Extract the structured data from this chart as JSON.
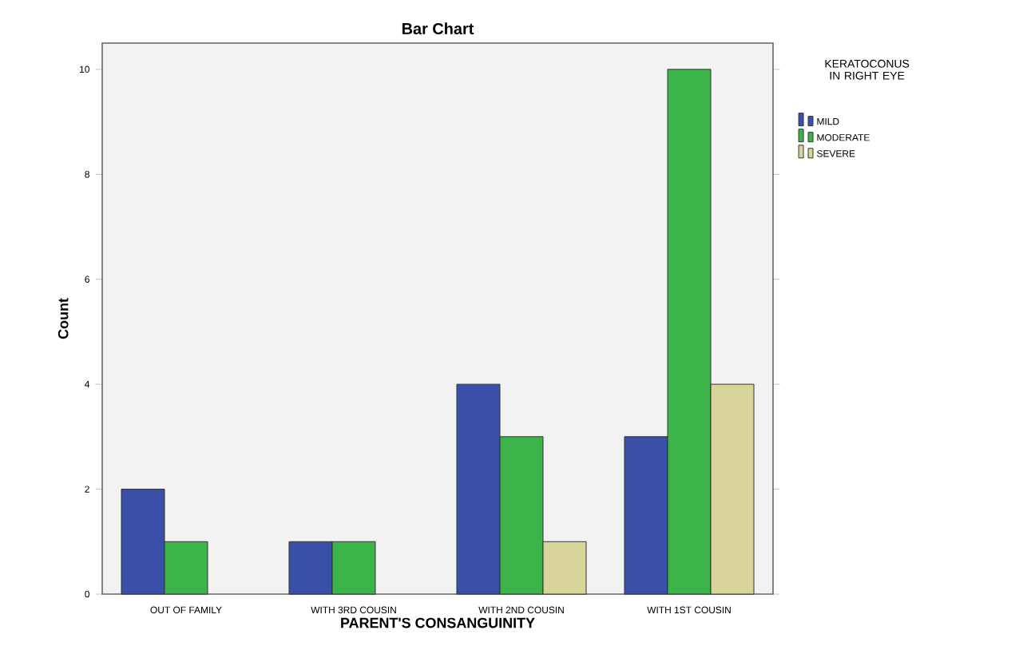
{
  "chart_data": {
    "type": "bar",
    "title": "Bar Chart",
    "xlabel": "PARENT'S CONSANGUINITY",
    "ylabel": "Count",
    "legend_title": "KERATOCONUS IN RIGHT EYE",
    "categories": [
      "OUT OF FAMILY",
      "WITH 3RD COUSIN",
      "WITH 2ND COUSIN",
      "WITH 1ST COUSIN"
    ],
    "series": [
      {
        "name": "MILD",
        "color": "#3a4fa8",
        "values": [
          2,
          1,
          4,
          3
        ]
      },
      {
        "name": "MODERATE",
        "color": "#3cb44a",
        "values": [
          1,
          1,
          3,
          10
        ]
      },
      {
        "name": "SEVERE",
        "color": "#d8d59a",
        "values": [
          null,
          null,
          1,
          4
        ]
      }
    ],
    "ylim": [
      0,
      10.5
    ],
    "yticks": [
      0,
      2,
      4,
      6,
      8,
      10
    ],
    "grid": false,
    "legend": "top right"
  }
}
